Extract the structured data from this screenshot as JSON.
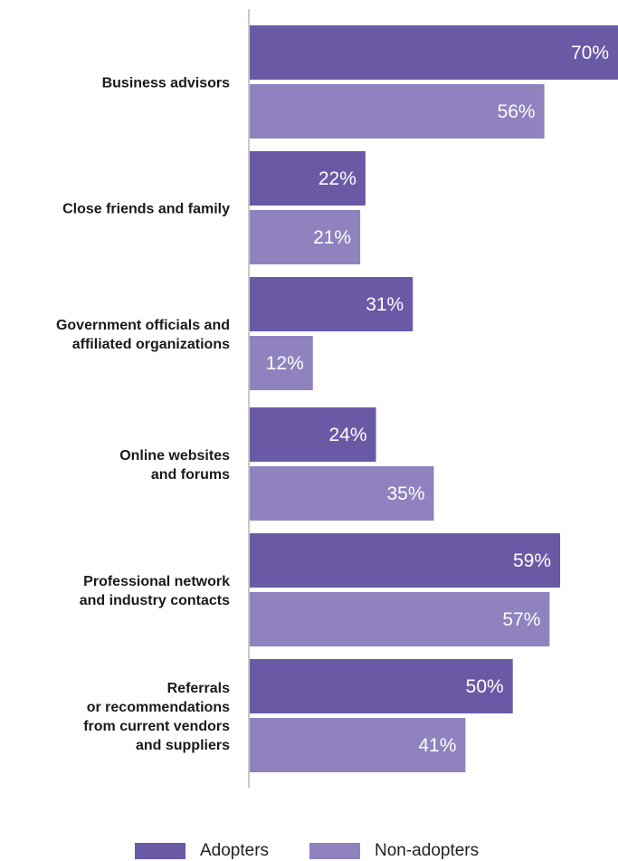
{
  "chart_data": {
    "type": "bar",
    "orientation": "horizontal",
    "categories": [
      [
        "Business advisors"
      ],
      [
        "Close friends and family"
      ],
      [
        "Government officials and",
        "affiliated organizations"
      ],
      [
        "Online websites",
        "and forums"
      ],
      [
        "Professional network",
        "and industry contacts"
      ],
      [
        "Referrals",
        "or recommendations",
        "from current vendors",
        "and suppliers"
      ]
    ],
    "series": [
      {
        "name": "Adopters",
        "values": [
          70,
          22,
          31,
          24,
          59,
          50
        ],
        "labels": [
          "70%",
          "22%",
          "31%",
          "24%",
          "59%",
          "50%"
        ],
        "color": "#6a5aa6"
      },
      {
        "name": "Non-adopters",
        "values": [
          56,
          21,
          12,
          35,
          57,
          41
        ],
        "labels": [
          "56%",
          "21%",
          "12%",
          "35%",
          "57%",
          "41%"
        ],
        "color": "#8f82bf"
      }
    ],
    "xlim": [
      0,
      70
    ],
    "grid": false,
    "legend": "bottom-center"
  }
}
